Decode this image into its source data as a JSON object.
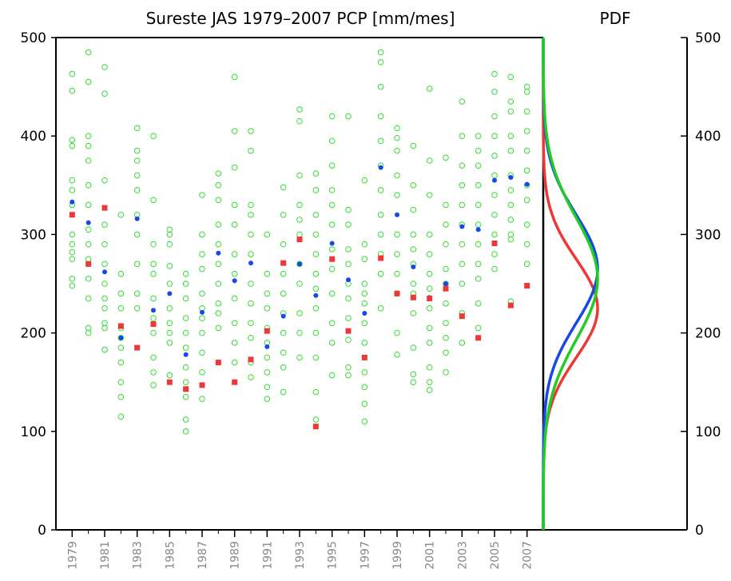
{
  "chart_data": {
    "type": "scatter",
    "title": "Sureste JAS 1979–2007 PCP [mm/mes]",
    "pdf_title": "PDF",
    "x": [
      1979,
      1980,
      1981,
      1982,
      1983,
      1984,
      1985,
      1986,
      1987,
      1988,
      1989,
      1990,
      1991,
      1992,
      1993,
      1994,
      1995,
      1996,
      1997,
      1998,
      1999,
      2000,
      2001,
      2002,
      2003,
      2004,
      2005,
      2006,
      2007
    ],
    "xlim": [
      1978,
      2008
    ],
    "xticks": [
      1979,
      1981,
      1983,
      1985,
      1987,
      1989,
      1991,
      1993,
      1995,
      1997,
      1999,
      2001,
      2003,
      2005,
      2007
    ],
    "ylim": [
      0,
      500
    ],
    "yticks": [
      0,
      100,
      200,
      300,
      400,
      500
    ],
    "series": [
      {
        "color": "#33dd33",
        "marker": "circle",
        "values": [
          [
            463,
            446,
            396,
            390,
            355,
            345,
            330,
            300,
            290,
            282,
            275,
            255,
            248
          ],
          [
            485,
            455,
            400,
            390,
            375,
            350,
            330,
            305,
            290,
            275,
            255,
            235,
            205,
            200
          ],
          [
            470,
            443,
            355,
            310,
            290,
            270,
            250,
            235,
            225,
            210,
            205,
            183
          ],
          [
            320,
            260,
            240,
            225,
            205,
            195,
            185,
            170,
            150,
            135,
            115
          ],
          [
            408,
            385,
            375,
            360,
            345,
            320,
            300,
            270,
            240,
            225
          ],
          [
            400,
            335,
            290,
            270,
            260,
            235,
            215,
            200,
            175,
            160,
            147
          ],
          [
            305,
            300,
            290,
            268,
            250,
            225,
            210,
            200,
            190,
            157
          ],
          [
            260,
            250,
            235,
            215,
            200,
            185,
            165,
            150,
            135,
            112,
            100
          ],
          [
            340,
            300,
            280,
            265,
            240,
            225,
            215,
            200,
            180,
            160,
            133
          ],
          [
            362,
            350,
            335,
            310,
            290,
            270,
            250,
            230,
            220,
            205
          ],
          [
            460,
            405,
            368,
            330,
            310,
            280,
            260,
            235,
            210,
            190,
            170
          ],
          [
            405,
            385,
            330,
            320,
            300,
            280,
            250,
            230,
            210,
            195,
            170,
            155
          ],
          [
            300,
            260,
            240,
            225,
            205,
            190,
            175,
            160,
            145,
            133
          ],
          [
            348,
            320,
            290,
            260,
            240,
            220,
            200,
            180,
            165,
            140
          ],
          [
            427,
            415,
            360,
            330,
            315,
            300,
            270,
            250,
            220,
            200,
            175
          ],
          [
            362,
            345,
            320,
            300,
            280,
            260,
            245,
            225,
            200,
            175,
            140,
            112
          ],
          [
            420,
            395,
            370,
            345,
            330,
            310,
            285,
            265,
            240,
            210,
            190,
            157
          ],
          [
            420,
            325,
            310,
            285,
            270,
            250,
            235,
            215,
            193,
            165,
            157
          ],
          [
            355,
            290,
            275,
            250,
            240,
            230,
            210,
            190,
            160,
            145,
            128,
            110
          ],
          [
            485,
            475,
            450,
            420,
            395,
            370,
            345,
            320,
            300,
            280,
            260,
            225
          ],
          [
            408,
            398,
            385,
            360,
            340,
            300,
            280,
            260,
            240,
            200,
            178
          ],
          [
            390,
            350,
            325,
            300,
            285,
            270,
            250,
            240,
            220,
            185,
            158,
            150
          ],
          [
            448,
            375,
            340,
            300,
            280,
            260,
            245,
            225,
            205,
            190,
            165,
            150,
            142
          ],
          [
            378,
            330,
            310,
            290,
            265,
            250,
            230,
            210,
            195,
            180,
            160
          ],
          [
            435,
            400,
            370,
            350,
            330,
            310,
            290,
            270,
            250,
            220,
            190
          ],
          [
            400,
            385,
            370,
            350,
            330,
            310,
            290,
            270,
            255,
            230,
            205
          ],
          [
            463,
            445,
            420,
            400,
            380,
            360,
            340,
            320,
            300,
            280,
            265
          ],
          [
            460,
            435,
            425,
            400,
            385,
            360,
            345,
            330,
            315,
            300,
            295,
            232
          ],
          [
            450,
            445,
            425,
            405,
            385,
            365,
            350,
            335,
            310,
            290,
            270
          ]
        ]
      },
      {
        "color": "#1848e8",
        "marker": "dot",
        "values": [
          333,
          312,
          262,
          195,
          316,
          223,
          240,
          178,
          221,
          281,
          253,
          271,
          186,
          217,
          270,
          238,
          291,
          254,
          220,
          368,
          320,
          267,
          236,
          250,
          308,
          305,
          355,
          358,
          351
        ]
      },
      {
        "color": "#ee3838",
        "marker": "square",
        "values": [
          320,
          270,
          327,
          207,
          185,
          209,
          150,
          143,
          147,
          170,
          150,
          173,
          202,
          271,
          295,
          105,
          275,
          202,
          175,
          276,
          240,
          236,
          235,
          245,
          217,
          195,
          291,
          228,
          248
        ]
      }
    ],
    "pdf": [
      {
        "color": "#ee3838",
        "mean": 225,
        "sd": 50
      },
      {
        "color": "#1848e8",
        "mean": 265,
        "sd": 55
      },
      {
        "color": "#22cc22",
        "mean": 255,
        "sd": 62
      }
    ]
  }
}
